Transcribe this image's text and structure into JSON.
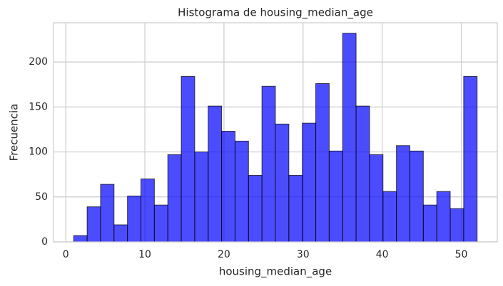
{
  "chart_data": {
    "type": "histogram",
    "title": "Histograma de housing_median_age",
    "xlabel": "housing_median_age",
    "ylabel": "Frecuencia",
    "bins": [
      1,
      2.7,
      4.4,
      6.1,
      7.8,
      9.5,
      11.2,
      12.9,
      14.6,
      16.3,
      18,
      19.7,
      21.4,
      23.1,
      24.8,
      26.5,
      28.2,
      29.9,
      31.6,
      33.3,
      35,
      36.7,
      38.4,
      40.1,
      41.8,
      43.5,
      45.2,
      46.9,
      48.6,
      50.3,
      52
    ],
    "counts": [
      7,
      39,
      64,
      19,
      51,
      70,
      41,
      97,
      184,
      100,
      151,
      123,
      112,
      74,
      173,
      131,
      74,
      132,
      176,
      101,
      232,
      151,
      97,
      56,
      107,
      101,
      41,
      56,
      37,
      184
    ],
    "color": "#0000ff",
    "edgecolor": "#000000",
    "xlim": [
      -1.55,
      54.55
    ],
    "xticks": [
      0,
      10,
      20,
      30,
      40,
      50
    ],
    "ylim": [
      0,
      243.6
    ],
    "yticks": [
      0,
      50,
      100,
      150,
      200
    ],
    "grid": true
  }
}
